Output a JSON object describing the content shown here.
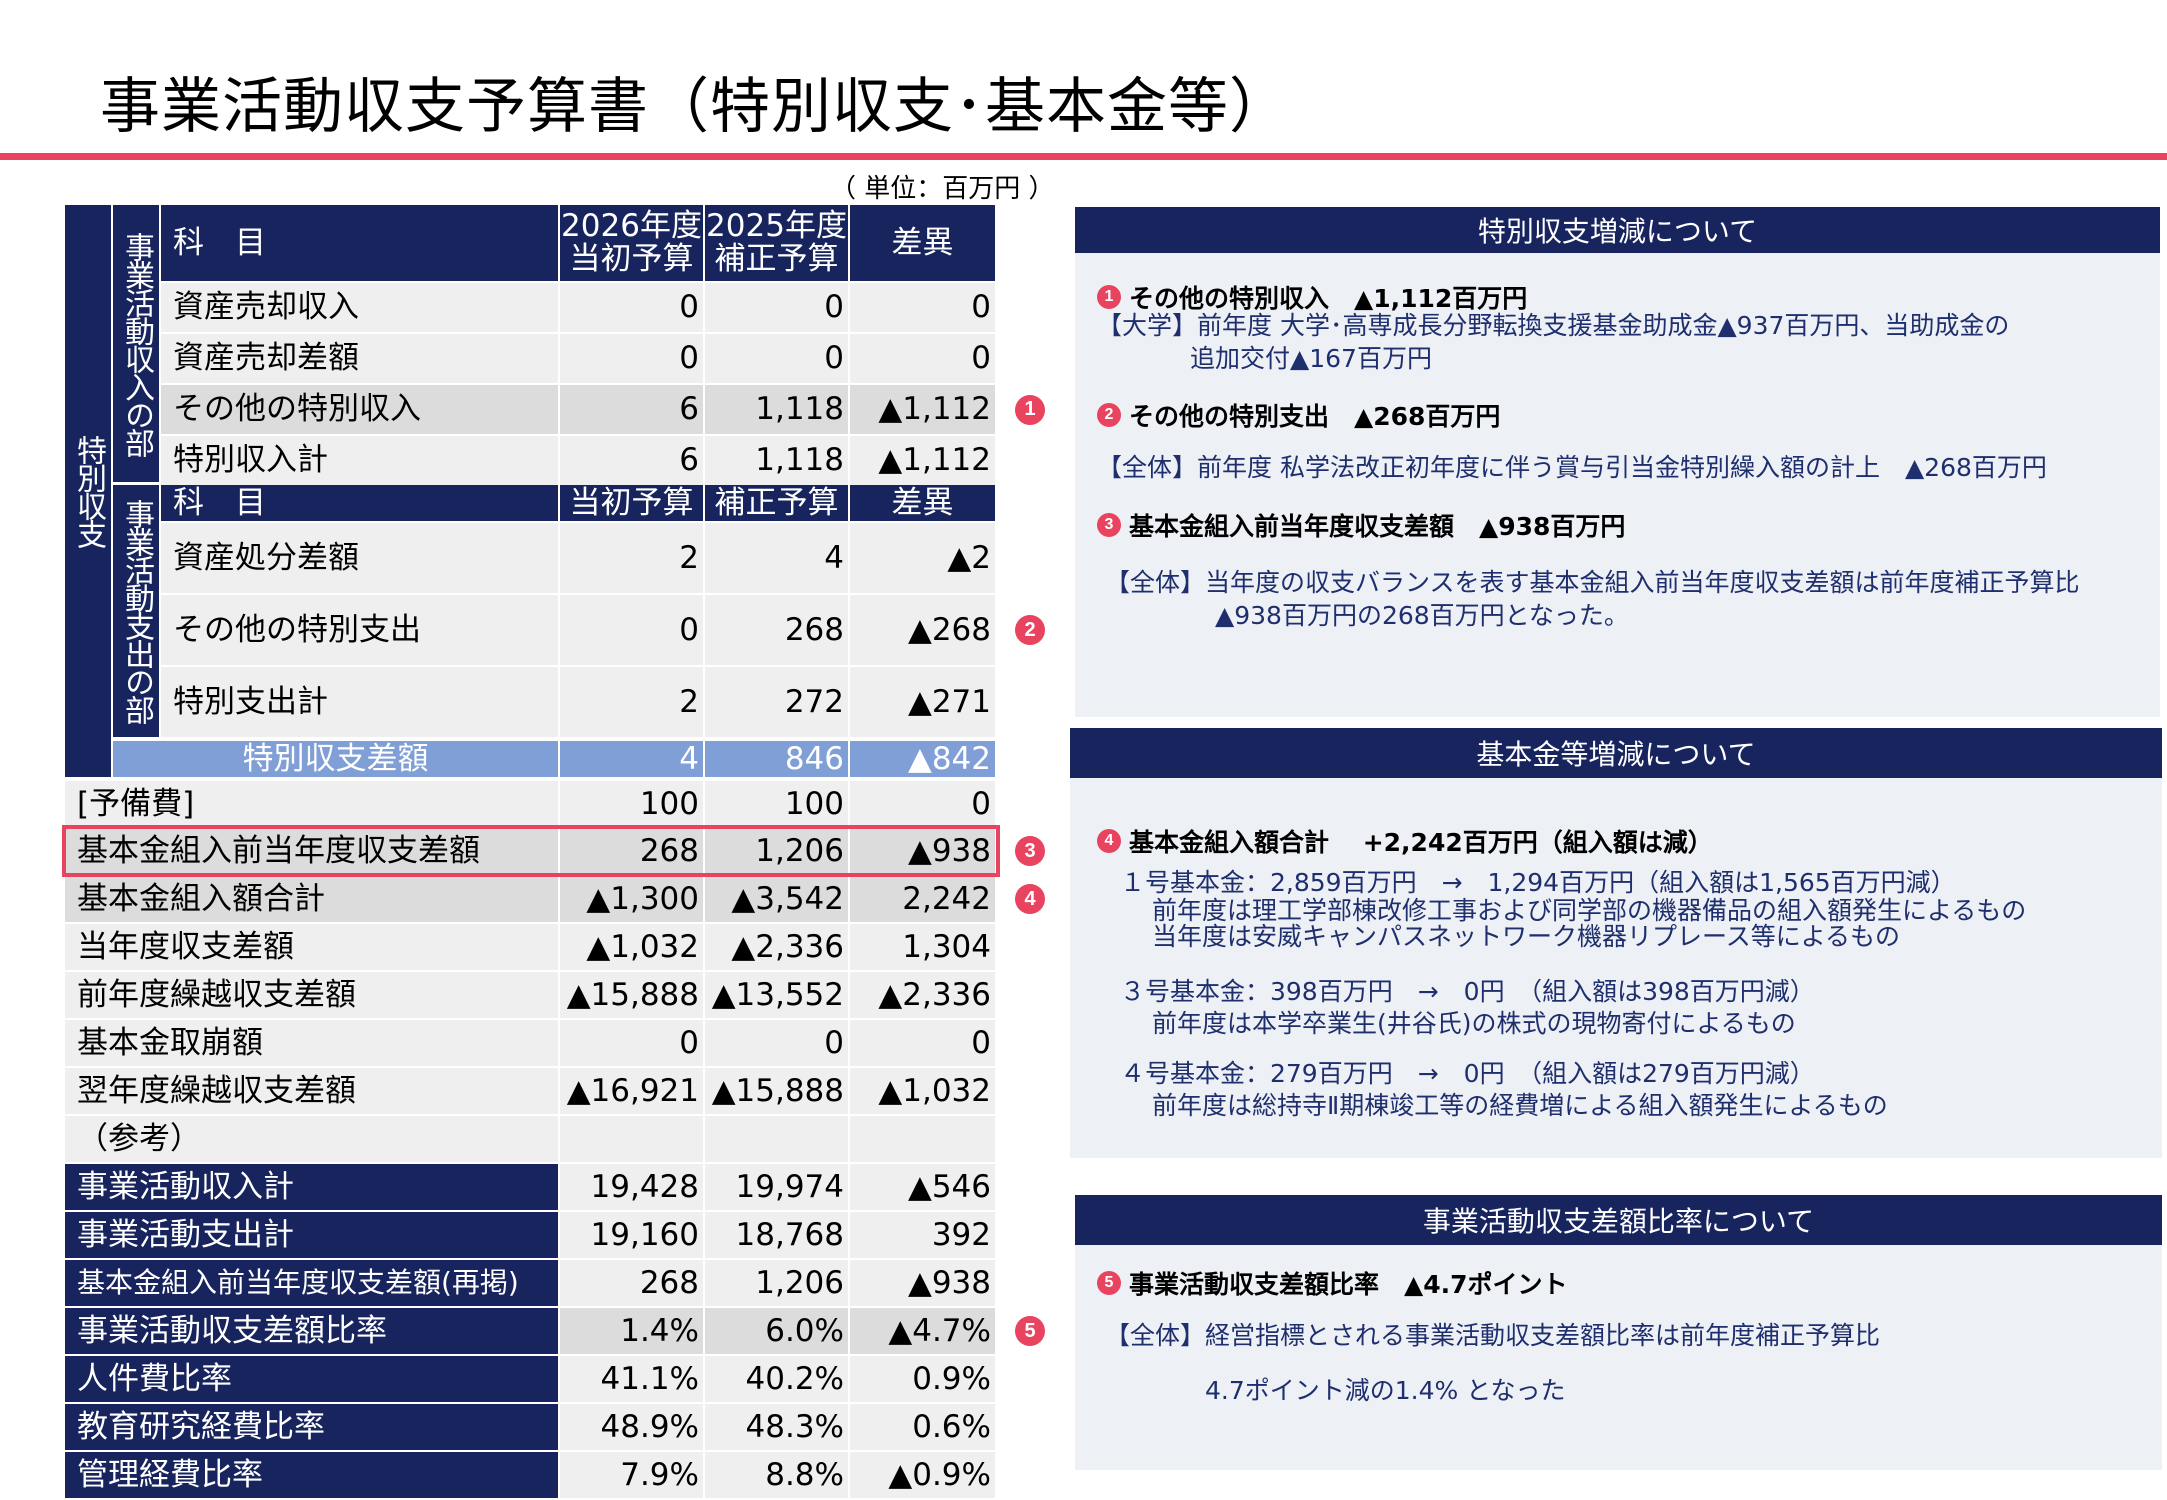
{
  "title": "事業活動収支予算書（特別収支･基本金等）",
  "unit": "（ 単位：百万円 ）",
  "table": {
    "side_label": "特別収支",
    "income_section_label": "事業活動収入の部",
    "expense_section_label": "事業活動支出の部",
    "header": {
      "item": "科　目",
      "col1": "2026年度\n当初予算",
      "col2": "2025年度\n補正予算",
      "col3": "差異"
    },
    "header2": {
      "item": "科　目",
      "col1": "当初予算",
      "col2": "補正予算",
      "col3": "差異"
    },
    "income_rows": [
      {
        "label": "資産売却収入",
        "v1": "0",
        "v2": "0",
        "v3": "0"
      },
      {
        "label": "資産売却差額",
        "v1": "0",
        "v2": "0",
        "v3": "0"
      },
      {
        "label": "その他の特別収入",
        "v1": "6",
        "v2": "1,118",
        "v3": "▲1,112",
        "badge": "1"
      },
      {
        "label": "特別収入計",
        "v1": "6",
        "v2": "1,118",
        "v3": "▲1,112"
      }
    ],
    "expense_rows": [
      {
        "label": "資産処分差額",
        "v1": "2",
        "v2": "4",
        "v3": "▲2"
      },
      {
        "label": "その他の特別支出",
        "v1": "0",
        "v2": "268",
        "v3": "▲268",
        "badge": "2"
      },
      {
        "label": "特別支出計",
        "v1": "2",
        "v2": "272",
        "v3": "▲271"
      }
    ],
    "balance_row": {
      "label": "特別収支差額",
      "v1": "4",
      "v2": "846",
      "v3": "▲842"
    },
    "lower_rows": [
      {
        "label": "[予備費]",
        "v1": "100",
        "v2": "100",
        "v3": "0"
      },
      {
        "label": "基本金組入前当年度収支差額",
        "v1": "268",
        "v2": "1,206",
        "v3": "▲938",
        "badge": "3"
      },
      {
        "label": "基本金組入額合計",
        "v1": "▲1,300",
        "v2": "▲3,542",
        "v3": "2,242",
        "badge": "4"
      },
      {
        "label": "当年度収支差額",
        "v1": "▲1,032",
        "v2": "▲2,336",
        "v3": "1,304"
      },
      {
        "label": "前年度繰越収支差額",
        "v1": "▲15,888",
        "v2": "▲13,552",
        "v3": "▲2,336"
      },
      {
        "label": "基本金取崩額",
        "v1": "0",
        "v2": "0",
        "v3": "0"
      },
      {
        "label": "翌年度繰越収支差額",
        "v1": "▲16,921",
        "v2": "▲15,888",
        "v3": "▲1,032"
      },
      {
        "label": "（参考）",
        "v1": "",
        "v2": "",
        "v3": ""
      }
    ],
    "ref_rows": [
      {
        "label": "事業活動収入計",
        "v1": "19,428",
        "v2": "19,974",
        "v3": "▲546"
      },
      {
        "label": "事業活動支出計",
        "v1": "19,160",
        "v2": "18,768",
        "v3": "392"
      },
      {
        "label": "基本金組入前当年度収支差額(再掲)",
        "v1": "268",
        "v2": "1,206",
        "v3": "▲938"
      },
      {
        "label": "事業活動収支差額比率",
        "v1": "1.4%",
        "v2": "6.0%",
        "v3": "▲4.7%",
        "badge": "5"
      },
      {
        "label": "人件費比率",
        "v1": "41.1%",
        "v2": "40.2%",
        "v3": "0.9%"
      },
      {
        "label": "教育研究経費比率",
        "v1": "48.9%",
        "v2": "48.3%",
        "v3": "0.6%"
      },
      {
        "label": "管理経費比率",
        "v1": "7.9%",
        "v2": "8.8%",
        "v3": "▲0.9%"
      }
    ]
  },
  "panels": {
    "p1": {
      "header": "特別収支増減について",
      "b1_num": "1",
      "b1_text": "その他の特別収入　▲1,112百万円",
      "b1_line1": "【大学】前年度 大学･高専成長分野転換支援基金助成金▲937百万円、当助成金の",
      "b1_line2": "追加交付▲167百万円",
      "b2_num": "2",
      "b2_text": "その他の特別支出　▲268百万円",
      "b2_line1": "【全体】前年度 私学法改正初年度に伴う賞与引当金特別繰入額の計上　▲268百万円",
      "b3_num": "3",
      "b3_text": "基本金組入前当年度収支差額　▲938百万円",
      "b3_line1": "【全体】当年度の収支バランスを表す基本金組入前当年度収支差額は前年度補正予算比",
      "b3_line2": "▲938百万円の268百万円となった。"
    },
    "p2": {
      "header": "基本金等増減について",
      "b4_num": "4",
      "b4_text": "基本金組入額合計　 +2,242百万円（組入額は減）",
      "l1": "１号基本金：2,859百万円　→　1,294百万円（組入額は1,565百万円減）",
      "l2": "前年度は理工学部棟改修工事および同学部の機器備品の組入額発生によるもの",
      "l3": "当年度は安威キャンパスネットワーク機器リプレース等によるもの",
      "l4": "３号基本金：398百万円　→　0円　（組入額は398百万円減）",
      "l5": "前年度は本学卒業生(井谷氏)の株式の現物寄付によるもの",
      "l6": "４号基本金：279百万円　→　0円　（組入額は279百万円減）",
      "l7": "前年度は総持寺Ⅱ期棟竣工等の経費増による組入額発生によるもの"
    },
    "p3": {
      "header": "事業活動収支差額比率について",
      "b5_num": "5",
      "b5_text": "事業活動収支差額比率　▲4.7ポイント",
      "l1": "【全体】経営指標とされる事業活動収支差額比率は前年度補正予算比",
      "l2": "4.7ポイント減の1.4% となった"
    }
  },
  "colors": {
    "navy": "#17245e",
    "accent": "#e8435f",
    "balance_blue": "#7f9fd6"
  }
}
